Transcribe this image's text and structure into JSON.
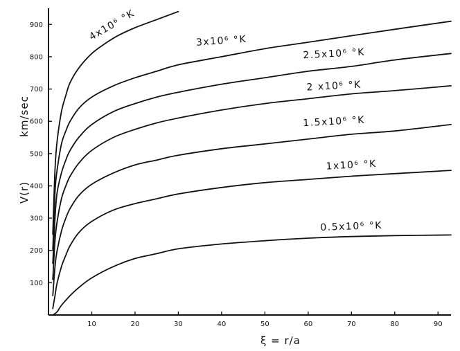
{
  "chart_data": {
    "type": "line",
    "xlabel": "ξ = r/a",
    "ylabel_parts": [
      "V(r)",
      "km/sec"
    ],
    "xlim": [
      0,
      93
    ],
    "ylim": [
      0,
      950
    ],
    "x_ticks": [
      10,
      20,
      30,
      40,
      50,
      60,
      70,
      80,
      90
    ],
    "y_ticks": [
      100,
      200,
      300,
      400,
      500,
      600,
      700,
      800,
      900
    ],
    "series": [
      {
        "name": "4x10⁶ °K",
        "x": [
          1,
          1.5,
          2,
          3,
          4,
          5,
          7,
          10,
          13,
          16,
          20,
          25,
          30
        ],
        "y": [
          250,
          450,
          540,
          630,
          680,
          720,
          765,
          810,
          840,
          865,
          890,
          915,
          940
        ]
      },
      {
        "name": "3x10⁶ °K",
        "x": [
          1,
          1.5,
          2,
          3,
          4,
          5,
          7,
          10,
          15,
          20,
          25,
          30,
          40,
          50,
          60,
          70,
          80,
          93
        ],
        "y": [
          200,
          380,
          450,
          530,
          570,
          600,
          640,
          675,
          710,
          735,
          755,
          775,
          800,
          825,
          845,
          865,
          885,
          910
        ]
      },
      {
        "name": "2.5x10⁶ °K",
        "x": [
          1,
          1.5,
          2,
          3,
          4,
          5,
          7,
          10,
          15,
          20,
          25,
          30,
          40,
          50,
          60,
          70,
          80,
          93
        ],
        "y": [
          160,
          300,
          380,
          440,
          480,
          510,
          550,
          590,
          630,
          655,
          675,
          690,
          715,
          735,
          755,
          770,
          790,
          810
        ]
      },
      {
        "name": "2x10⁶ °K",
        "x": [
          1,
          1.5,
          2,
          3,
          4,
          5,
          7,
          10,
          15,
          20,
          25,
          30,
          40,
          50,
          60,
          70,
          80,
          93
        ],
        "y": [
          110,
          230,
          290,
          360,
          400,
          430,
          470,
          510,
          550,
          575,
          595,
          610,
          635,
          655,
          670,
          685,
          695,
          710
        ]
      },
      {
        "name": "1.5x10⁶ °K",
        "x": [
          1,
          1.5,
          2,
          3,
          4,
          5,
          7,
          10,
          15,
          20,
          25,
          30,
          40,
          50,
          60,
          70,
          80,
          93
        ],
        "y": [
          60,
          150,
          200,
          260,
          300,
          330,
          370,
          405,
          440,
          465,
          480,
          495,
          515,
          530,
          545,
          560,
          570,
          590
        ]
      },
      {
        "name": "1x10⁶ °K",
        "x": [
          1,
          1.5,
          2,
          3,
          4,
          5,
          7,
          10,
          15,
          20,
          25,
          30,
          40,
          50,
          60,
          70,
          80,
          93
        ],
        "y": [
          20,
          60,
          100,
          150,
          185,
          215,
          255,
          290,
          325,
          345,
          360,
          375,
          395,
          410,
          420,
          430,
          438,
          448
        ]
      },
      {
        "name": "0.5x10⁶ °K",
        "x": [
          1,
          2,
          3,
          5,
          7,
          10,
          15,
          20,
          25,
          30,
          40,
          50,
          60,
          70,
          80,
          93
        ],
        "y": [
          0,
          10,
          30,
          60,
          85,
          115,
          150,
          175,
          190,
          205,
          220,
          230,
          238,
          243,
          246,
          248
        ]
      }
    ],
    "labels": [
      {
        "text": "4x10⁶ °K",
        "x": 15,
        "y": 890,
        "rotate": -30
      },
      {
        "text": "3x10⁶ °K",
        "x": 40,
        "y": 840,
        "rotate": -4
      },
      {
        "text": "2.5x10⁶ °K",
        "x": 66,
        "y": 800,
        "rotate": -3
      },
      {
        "text": "2 x10⁶ °K",
        "x": 66,
        "y": 700,
        "rotate": -3
      },
      {
        "text": "1.5x10⁶ °K",
        "x": 66,
        "y": 590,
        "rotate": -3
      },
      {
        "text": "1x10⁶ °K",
        "x": 70,
        "y": 455,
        "rotate": -3
      },
      {
        "text": "0.5x10⁶ °K",
        "x": 70,
        "y": 265,
        "rotate": -2
      }
    ]
  }
}
